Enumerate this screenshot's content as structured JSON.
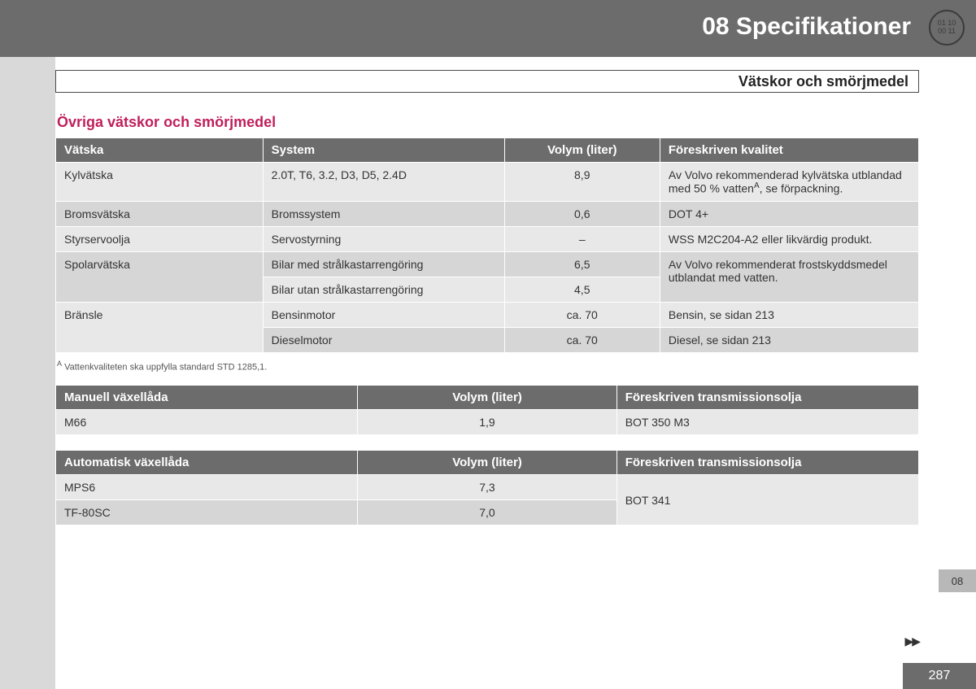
{
  "chapter_title": "08 Specifikationer",
  "corner_badge": {
    "line1": "01 10",
    "line2": "00 11"
  },
  "section_title": "Vätskor och smörjmedel",
  "subheading": "Övriga vätskor och smörjmedel",
  "colors": {
    "banner_bg": "#6c6c6c",
    "header_bg": "#6c6c6c",
    "row_light": "#e8e8e8",
    "row_dark": "#d6d6d6",
    "left_margin": "#d9d9d9",
    "subheading": "#c01f5c",
    "text": "#333333",
    "white": "#ffffff"
  },
  "fluids_table": {
    "columns": [
      "Vätska",
      "System",
      "Volym (liter)",
      "Föreskriven kvalitet"
    ],
    "col_widths": [
      "24%",
      "28%",
      "18%",
      "30%"
    ],
    "rows": [
      {
        "fluid": "Kylvätska",
        "systems": [
          {
            "system": "2.0T, T6, 3.2, D3, D5, 2.4D",
            "volume": "8,9"
          }
        ],
        "quality_html": "Av Volvo rekommenderad kylvätska utblandad med 50 % vatten<sup>A</sup>, se för­packning.",
        "shade": "light"
      },
      {
        "fluid": "Bromsvätska",
        "systems": [
          {
            "system": "Bromssystem",
            "volume": "0,6"
          }
        ],
        "quality_html": "DOT 4+",
        "shade": "dark"
      },
      {
        "fluid": "Styrservoolja",
        "systems": [
          {
            "system": "Servostyrning",
            "volume": "–"
          }
        ],
        "quality_html": "WSS M2C204-A2 eller likvärdig pro­dukt.",
        "shade": "light"
      },
      {
        "fluid": "Spolarvätska",
        "systems": [
          {
            "system": "Bilar med strålkastarrengöring",
            "volume": "6,5"
          },
          {
            "system": "Bilar utan strålkastarrengöring",
            "volume": "4,5"
          }
        ],
        "quality_html": "Av Volvo rekommenderat frostskydds­medel utblandat med vatten.",
        "shade": "dark"
      },
      {
        "fluid": "Bränsle",
        "systems": [
          {
            "system": "Bensinmotor",
            "volume": "ca. 70",
            "quality": "Bensin, se sidan 213"
          },
          {
            "system": "Dieselmotor",
            "volume": "ca. 70",
            "quality": "Diesel, se sidan 213"
          }
        ],
        "quality_html": null,
        "shade": "light"
      }
    ]
  },
  "footnote_label": "A",
  "footnote_text": "Vattenkvaliteten ska uppfylla standard STD 1285,1.",
  "manual_table": {
    "columns": [
      "Manuell växellåda",
      "Volym (liter)",
      "Föreskriven transmissionsolja"
    ],
    "col_widths": [
      "35%",
      "30%",
      "35%"
    ],
    "rows": [
      {
        "cells": [
          "M66",
          "1,9",
          "BOT 350 M3"
        ],
        "shade": "light"
      }
    ]
  },
  "auto_table": {
    "columns": [
      "Automatisk växellåda",
      "Volym (liter)",
      "Föreskriven transmissionsolja"
    ],
    "col_widths": [
      "35%",
      "30%",
      "35%"
    ],
    "rows": [
      {
        "name": "MPS6",
        "volume": "7,3",
        "shade": "light"
      },
      {
        "name": "TF-80SC",
        "volume": "7,0",
        "shade": "dark"
      }
    ],
    "shared_oil": "BOT 341"
  },
  "side_tab": "08",
  "page_number": "287"
}
